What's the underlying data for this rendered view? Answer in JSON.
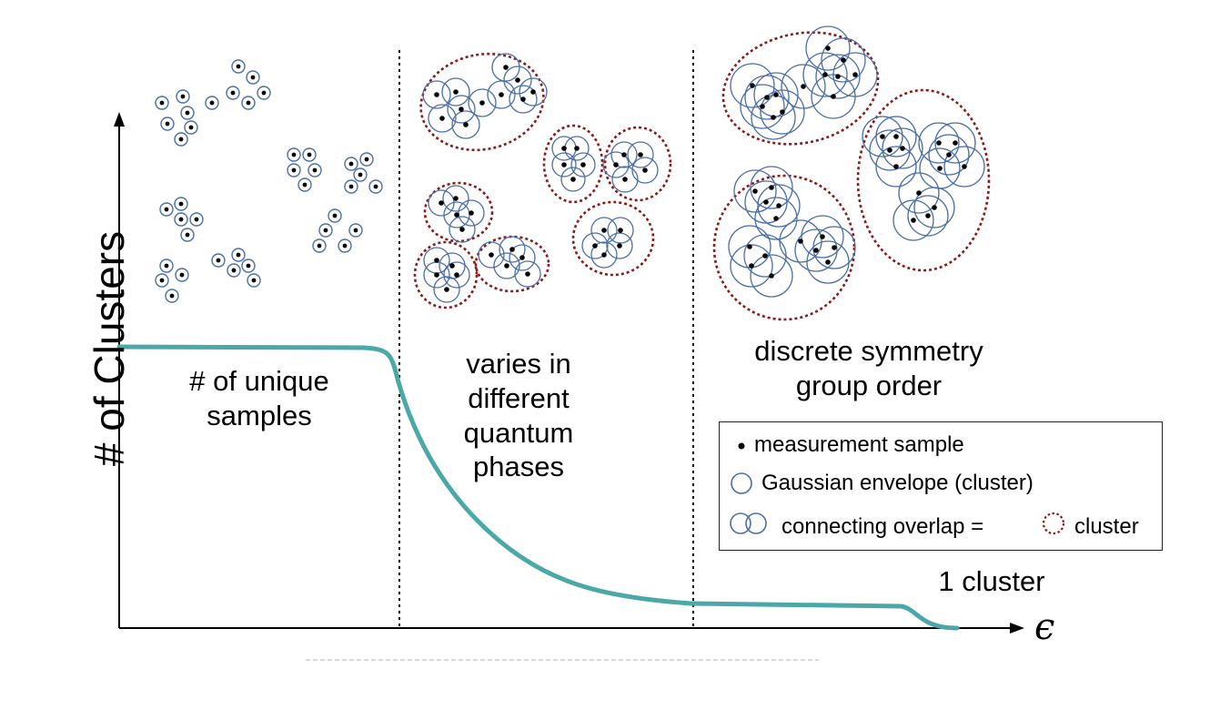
{
  "y_axis_title": "# of Clusters",
  "x_axis_symbol": "ϵ",
  "regions": [
    {
      "label_lines": [
        "# of unique",
        "samples"
      ]
    },
    {
      "label_lines": [
        "varies in",
        "different",
        "quantum",
        "phases"
      ]
    },
    {
      "label_lines": [
        "discrete symmetry",
        "group order"
      ]
    }
  ],
  "end_label": "1 cluster",
  "legend": {
    "sample": "measurement sample",
    "envelope": "Gaussian envelope (cluster)",
    "overlap": "connecting overlap =",
    "cluster": "cluster"
  },
  "colors": {
    "curve": "#4aa8a8",
    "envelope": "#4a6ea8",
    "cluster_outline": "#8b1a1a",
    "sample": "#000000"
  }
}
